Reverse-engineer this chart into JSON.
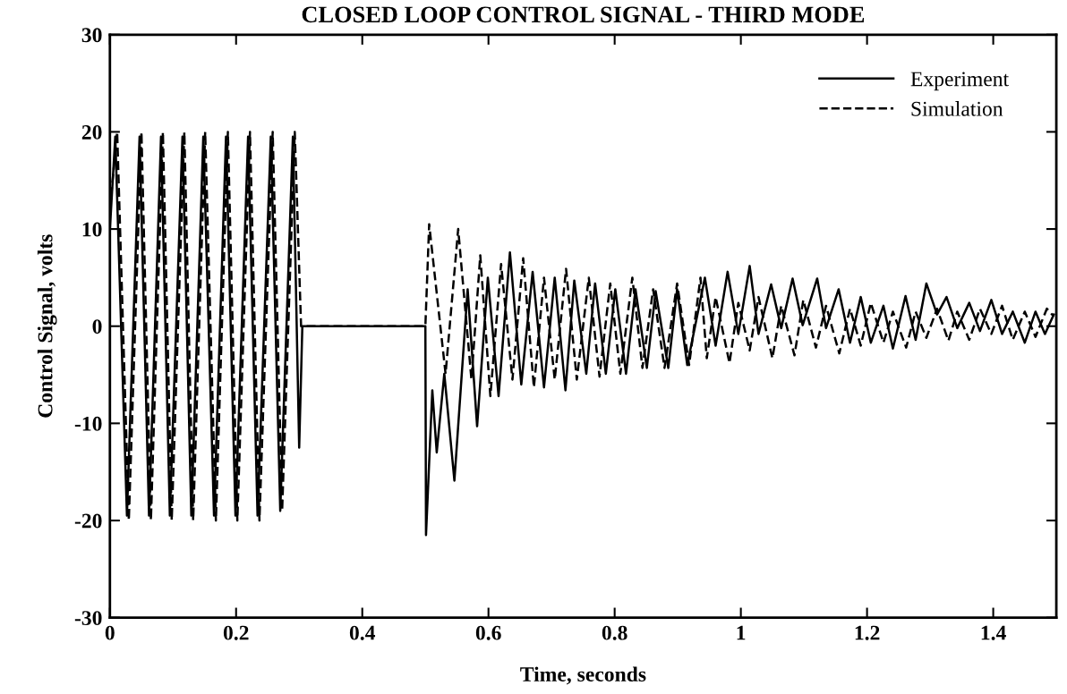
{
  "chart_data": {
    "type": "line",
    "title": "CLOSED LOOP CONTROL SIGNAL - THIRD MODE",
    "xlabel": "Time, seconds",
    "ylabel": "Control Signal, volts",
    "xlim": [
      0,
      1.5
    ],
    "xticks": [
      0,
      0.2,
      0.4,
      0.6,
      0.8,
      1,
      1.2,
      1.4
    ],
    "ylim": [
      -30,
      30
    ],
    "yticks": [
      -30,
      -20,
      -10,
      0,
      10,
      20,
      30
    ],
    "grid": false,
    "legend": "top right",
    "marker": "none",
    "series": [
      {
        "name": "Experiment",
        "color": "#000000",
        "line_style": "solid",
        "x": [
          0,
          0.0085,
          0.027,
          0.047,
          0.062,
          0.081,
          0.095,
          0.115,
          0.129,
          0.148,
          0.165,
          0.184,
          0.199,
          0.219,
          0.234,
          0.255,
          0.27,
          0.29,
          0.3,
          0.305,
          0.5,
          0.501,
          0.511,
          0.518,
          0.53,
          0.546,
          0.567,
          0.582,
          0.599,
          0.616,
          0.634,
          0.652,
          0.67,
          0.688,
          0.705,
          0.722,
          0.736,
          0.755,
          0.769,
          0.786,
          0.801,
          0.818,
          0.833,
          0.851,
          0.865,
          0.885,
          0.899,
          0.915,
          0.943,
          0.96,
          0.979,
          0.996,
          1.014,
          1.028,
          1.048,
          1.064,
          1.082,
          1.098,
          1.121,
          1.135,
          1.155,
          1.173,
          1.19,
          1.206,
          1.226,
          1.241,
          1.261,
          1.277,
          1.294,
          1.311,
          1.326,
          1.343,
          1.362,
          1.379,
          1.397,
          1.414,
          1.431,
          1.45,
          1.467,
          1.482,
          1.496
        ],
        "values": [
          10,
          19.5,
          -19.5,
          19.5,
          -19.5,
          19.5,
          -19.5,
          19.5,
          -19.5,
          19.5,
          -19.5,
          19.5,
          -19.5,
          19.5,
          -19.5,
          19.5,
          -19,
          19.5,
          -12.5,
          0,
          0,
          -21.5,
          -6.6,
          -13,
          -4.9,
          -15.9,
          3.8,
          -10.3,
          5,
          -7.2,
          7.6,
          -6,
          5.6,
          -6.3,
          5,
          -6.6,
          4.7,
          -4.9,
          4.4,
          -4.9,
          3.8,
          -4.9,
          3.8,
          -4.3,
          3.6,
          -4.3,
          3.8,
          -4,
          5,
          -2,
          5.6,
          -0.8,
          6.2,
          -0.8,
          4.3,
          -0.2,
          4.9,
          0.1,
          4.9,
          -0.2,
          3.8,
          -1.7,
          3,
          -1.7,
          2.1,
          -2.3,
          3.1,
          -1.4,
          4.4,
          1.2,
          3,
          -0.2,
          2.4,
          -0.5,
          2.7,
          -0.8,
          1.5,
          -1.7,
          1.5,
          -0.8,
          1.2
        ]
      },
      {
        "name": "Simulation",
        "color": "#000000",
        "line_style": "dashed",
        "x": [
          0,
          0.0115,
          0.03,
          0.05,
          0.065,
          0.084,
          0.098,
          0.118,
          0.132,
          0.151,
          0.168,
          0.187,
          0.202,
          0.222,
          0.237,
          0.258,
          0.273,
          0.293,
          0.303,
          0.5,
          0.506,
          0.532,
          0.552,
          0.573,
          0.587,
          0.603,
          0.62,
          0.638,
          0.655,
          0.672,
          0.688,
          0.705,
          0.723,
          0.74,
          0.759,
          0.776,
          0.793,
          0.809,
          0.828,
          0.844,
          0.861,
          0.879,
          0.899,
          0.918,
          0.936,
          0.946,
          0.96,
          0.982,
          0.996,
          1.014,
          1.028,
          1.05,
          1.064,
          1.085,
          1.099,
          1.119,
          1.135,
          1.156,
          1.173,
          1.19,
          1.206,
          1.226,
          1.241,
          1.262,
          1.277,
          1.294,
          1.311,
          1.329,
          1.343,
          1.362,
          1.379,
          1.397,
          1.414,
          1.431,
          1.45,
          1.467,
          1.485,
          1.496
        ],
        "values": [
          12,
          20,
          -20,
          20,
          -20,
          20,
          -20,
          20,
          -20,
          20,
          -20,
          20,
          -20,
          20,
          -20,
          20,
          -19,
          20,
          0,
          0,
          10.5,
          -4.9,
          10,
          -5.5,
          7.3,
          -7.2,
          6.4,
          -5.5,
          7,
          -6.3,
          5,
          -5.5,
          5.9,
          -5.5,
          5,
          -5.2,
          4.4,
          -4.9,
          5,
          -4.3,
          3.8,
          -4.3,
          4.4,
          -4,
          5,
          -3.3,
          3,
          -3.8,
          2.4,
          -2.5,
          3,
          -3.3,
          2.1,
          -3,
          2.7,
          -2.2,
          2.1,
          -2.8,
          1.8,
          -2,
          2.4,
          -1.7,
          1.5,
          -2.2,
          1.5,
          -1.2,
          1.8,
          -1.5,
          1.5,
          -1.4,
          1.8,
          -0.8,
          2.1,
          -1.4,
          1.5,
          -1.1,
          1.8,
          1
        ]
      }
    ]
  }
}
